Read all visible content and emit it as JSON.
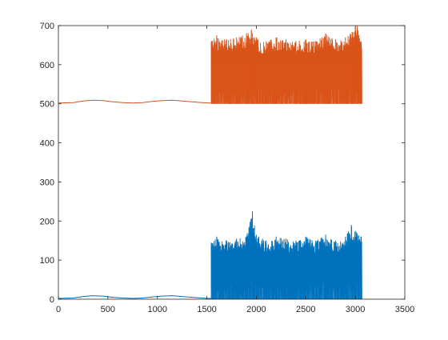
{
  "chart_data": {
    "type": "line",
    "title": "",
    "xlabel": "",
    "ylabel": "",
    "xlim": [
      0,
      3500
    ],
    "ylim": [
      0,
      700
    ],
    "xticks": [
      0,
      500,
      1000,
      1500,
      2000,
      2500,
      3000,
      3500
    ],
    "yticks": [
      0,
      100,
      200,
      300,
      400,
      500,
      600,
      700
    ],
    "grid": false,
    "legend": "none",
    "series": [
      {
        "color": "#0072BD",
        "baseline": 0,
        "x": [
          0,
          150,
          250,
          350,
          450,
          550,
          650,
          750,
          850,
          950,
          1050,
          1150,
          1250,
          1350,
          1450,
          1520,
          1540,
          1545,
          1600,
          1700,
          1800,
          1900,
          1960,
          2000,
          2100,
          2200,
          2300,
          2400,
          2500,
          2600,
          2700,
          2800,
          2900,
          2960,
          3000,
          3060,
          3065
        ],
        "y": [
          2,
          3,
          7,
          9,
          8,
          5,
          3,
          2,
          3,
          6,
          8,
          9,
          7,
          5,
          3,
          2,
          2,
          145,
          160,
          150,
          155,
          160,
          225,
          165,
          150,
          160,
          155,
          150,
          160,
          150,
          165,
          150,
          160,
          190,
          175,
          160,
          0
        ],
        "spike_from": 1545,
        "spike_to": 3065
      },
      {
        "color": "#D95319",
        "baseline": 500,
        "x": [
          0,
          150,
          250,
          350,
          450,
          550,
          650,
          750,
          850,
          950,
          1050,
          1150,
          1250,
          1350,
          1450,
          1520,
          1540,
          1545,
          1600,
          1700,
          1800,
          1900,
          1950,
          2000,
          2100,
          2200,
          2300,
          2400,
          2500,
          2600,
          2700,
          2800,
          2900,
          3000,
          3020,
          3060,
          3065
        ],
        "y": [
          502,
          503,
          507,
          509,
          508,
          505,
          503,
          502,
          503,
          506,
          508,
          509,
          507,
          505,
          503,
          502,
          502,
          660,
          675,
          665,
          670,
          680,
          690,
          670,
          660,
          670,
          665,
          660,
          665,
          660,
          680,
          665,
          670,
          695,
          700,
          660,
          500
        ],
        "spike_from": 1545,
        "spike_to": 3065
      }
    ]
  }
}
